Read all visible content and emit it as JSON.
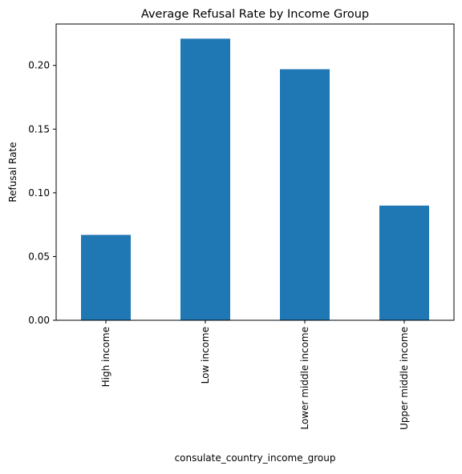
{
  "chart_data": {
    "type": "bar",
    "title": "Average Refusal Rate by Income Group",
    "xlabel": "consulate_country_income_group",
    "ylabel": "Refusal Rate",
    "categories": [
      "High income",
      "Low income",
      "Lower middle income",
      "Upper middle income"
    ],
    "values": [
      0.067,
      0.221,
      0.197,
      0.09
    ],
    "ylim": [
      0,
      0.2325
    ],
    "yticks": [
      0.0,
      0.05,
      0.1,
      0.15,
      0.2
    ],
    "ytick_labels": [
      "0.00",
      "0.05",
      "0.10",
      "0.15",
      "0.20"
    ],
    "grid": false,
    "legend": "none",
    "bar_color": "#1f77b4"
  }
}
